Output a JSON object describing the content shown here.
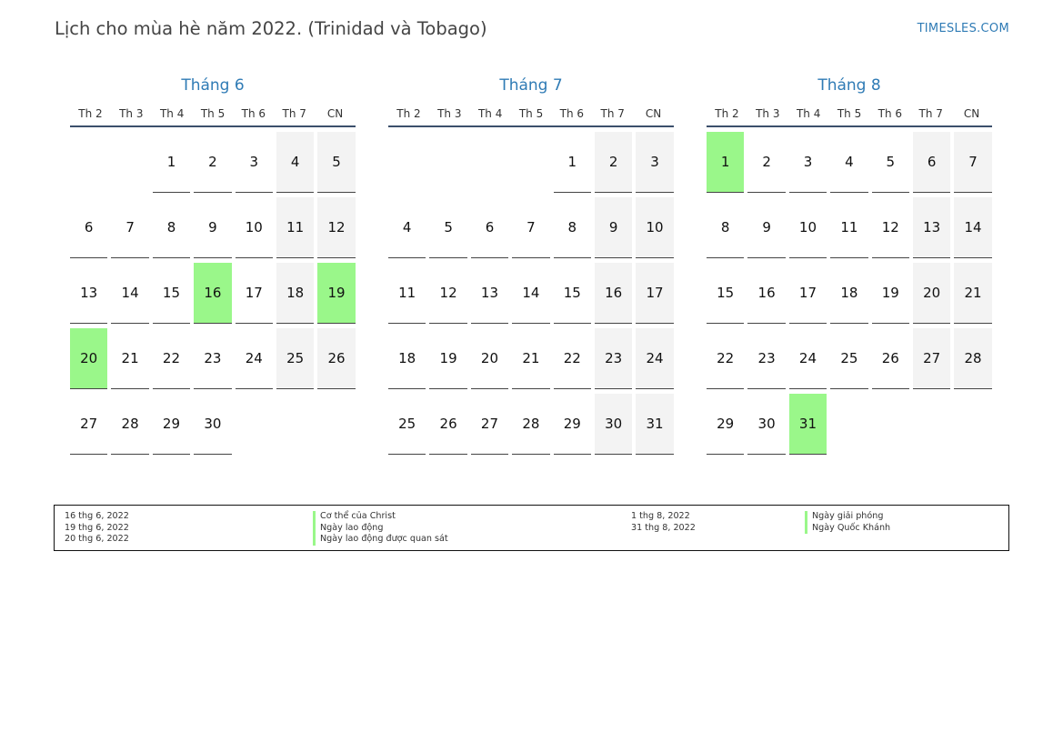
{
  "title": "Lịch cho mùa hè năm 2022. (Trinidad và Tobago)",
  "site": "TIMESLES.COM",
  "weekdays": [
    "Th 2",
    "Th 3",
    "Th 4",
    "Th 5",
    "Th 6",
    "Th 7",
    "CN"
  ],
  "colors": {
    "accent": "#2f7bb5",
    "holiday": "#9af78a",
    "weekend": "#f3f3f3"
  },
  "months": [
    {
      "name": "Tháng 6",
      "first_weekday": 2,
      "days": 30,
      "holidays": [
        16,
        19,
        20
      ]
    },
    {
      "name": "Tháng 7",
      "first_weekday": 4,
      "days": 31,
      "holidays": []
    },
    {
      "name": "Tháng 8",
      "first_weekday": 0,
      "days": 31,
      "holidays": [
        1,
        31
      ]
    }
  ],
  "legend": {
    "left_dates": [
      "16 thg 6, 2022",
      "19 thg 6, 2022",
      "20 thg 6, 2022"
    ],
    "left_names": [
      "Cơ thể của Christ",
      "Ngày lao động",
      "Ngày lao động được quan sát"
    ],
    "right_dates": [
      "1 thg 8, 2022",
      "31 thg 8, 2022"
    ],
    "right_names": [
      "Ngày giải phóng",
      "Ngày Quốc Khánh"
    ]
  }
}
